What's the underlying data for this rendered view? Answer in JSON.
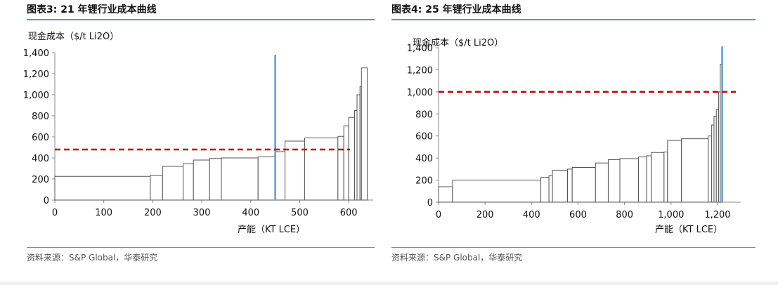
{
  "source_text": "资料来源：S&P Global，华泰研究",
  "chart_data": [
    {
      "type": "bar",
      "title": "图表3:   21 年锂行业成本曲线",
      "ylabel": "现金成本（$/t Li2O）",
      "xlabel": "产能（KT LCE）",
      "xlim": [
        0,
        650
      ],
      "ylim": [
        0,
        1400
      ],
      "xticks": [
        0,
        100,
        200,
        300,
        400,
        500,
        600
      ],
      "yticks": [
        0,
        200,
        400,
        600,
        800,
        1000,
        1200,
        1400
      ],
      "x_tick_labels": [
        "0",
        "100",
        "200",
        "300",
        "400",
        "500",
        "600"
      ],
      "y_tick_labels": [
        "0",
        "200",
        "400",
        "600",
        "800",
        "1,000",
        "1,200",
        "1,400"
      ],
      "grid": false,
      "bars": [
        {
          "x0": 0,
          "x1": 195,
          "value": 225
        },
        {
          "x0": 195,
          "x1": 220,
          "value": 235
        },
        {
          "x0": 220,
          "x1": 262,
          "value": 320
        },
        {
          "x0": 262,
          "x1": 283,
          "value": 345
        },
        {
          "x0": 283,
          "x1": 316,
          "value": 380
        },
        {
          "x0": 316,
          "x1": 340,
          "value": 395
        },
        {
          "x0": 340,
          "x1": 415,
          "value": 400
        },
        {
          "x0": 415,
          "x1": 450,
          "value": 410
        },
        {
          "x0": 450,
          "x1": 470,
          "value": 460
        },
        {
          "x0": 470,
          "x1": 510,
          "value": 560
        },
        {
          "x0": 510,
          "x1": 578,
          "value": 590
        },
        {
          "x0": 578,
          "x1": 590,
          "value": 605
        },
        {
          "x0": 590,
          "x1": 600,
          "value": 705
        },
        {
          "x0": 600,
          "x1": 612,
          "value": 785
        },
        {
          "x0": 612,
          "x1": 617,
          "value": 850
        },
        {
          "x0": 617,
          "x1": 623,
          "value": 1000
        },
        {
          "x0": 623,
          "x1": 626,
          "value": 1080
        },
        {
          "x0": 626,
          "x1": 638,
          "value": 1255
        }
      ],
      "price_line": 480,
      "demand_line_x": 450,
      "colors": {
        "bar_fill": "#ffffff",
        "bar_stroke": "#555555",
        "price_line": "#c00000",
        "demand_line": "#5b9bd5"
      }
    },
    {
      "type": "bar",
      "title": "图表4:   25 年锂行业成本曲线",
      "ylabel": "现金成本（$/t Li2O）",
      "xlabel": "产能（KT LCE）",
      "xlim": [
        0,
        1300
      ],
      "ylim": [
        0,
        1400
      ],
      "xticks": [
        0,
        200,
        400,
        600,
        800,
        1000,
        1200
      ],
      "yticks": [
        0,
        200,
        400,
        600,
        800,
        1000,
        1200,
        1400
      ],
      "x_tick_labels": [
        "0",
        "200",
        "400",
        "600",
        "800",
        "1,000",
        "1,200"
      ],
      "y_tick_labels": [
        "0",
        "200",
        "400",
        "600",
        "800",
        "1,000",
        "1,200",
        "1,400"
      ],
      "grid": false,
      "bars": [
        {
          "x0": 0,
          "x1": 60,
          "value": 140
        },
        {
          "x0": 60,
          "x1": 440,
          "value": 200
        },
        {
          "x0": 440,
          "x1": 475,
          "value": 225
        },
        {
          "x0": 475,
          "x1": 490,
          "value": 240
        },
        {
          "x0": 490,
          "x1": 555,
          "value": 290
        },
        {
          "x0": 555,
          "x1": 575,
          "value": 300
        },
        {
          "x0": 575,
          "x1": 675,
          "value": 315
        },
        {
          "x0": 675,
          "x1": 730,
          "value": 355
        },
        {
          "x0": 730,
          "x1": 780,
          "value": 385
        },
        {
          "x0": 780,
          "x1": 860,
          "value": 395
        },
        {
          "x0": 860,
          "x1": 895,
          "value": 410
        },
        {
          "x0": 895,
          "x1": 915,
          "value": 420
        },
        {
          "x0": 915,
          "x1": 970,
          "value": 450
        },
        {
          "x0": 970,
          "x1": 985,
          "value": 455
        },
        {
          "x0": 985,
          "x1": 1045,
          "value": 560
        },
        {
          "x0": 1045,
          "x1": 1160,
          "value": 575
        },
        {
          "x0": 1160,
          "x1": 1175,
          "value": 600
        },
        {
          "x0": 1175,
          "x1": 1185,
          "value": 700
        },
        {
          "x0": 1185,
          "x1": 1195,
          "value": 780
        },
        {
          "x0": 1195,
          "x1": 1205,
          "value": 840
        },
        {
          "x0": 1205,
          "x1": 1212,
          "value": 1000
        },
        {
          "x0": 1212,
          "x1": 1220,
          "value": 1250
        }
      ],
      "price_line": 1000,
      "demand_line_x": 1220,
      "colors": {
        "bar_fill": "#ffffff",
        "bar_stroke": "#555555",
        "price_line": "#c00000",
        "demand_line": "#5b9bd5"
      }
    }
  ]
}
